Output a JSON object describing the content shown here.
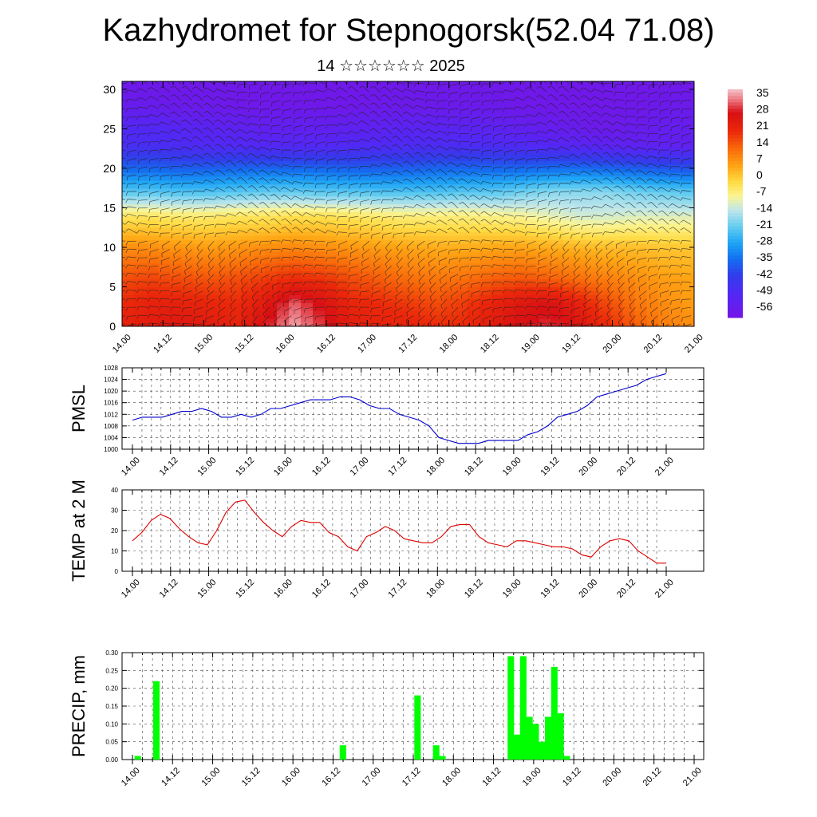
{
  "title": "Kazhydromet for Stepnogorsk(52.04 71.08)",
  "subtitle": "14 ☆☆☆☆☆☆ 2025",
  "time_labels": [
    "14.00",
    "14.12",
    "15.00",
    "15.12",
    "16.00",
    "16.12",
    "17.00",
    "17.12",
    "18.00",
    "18.12",
    "19.00",
    "19.12",
    "20.00",
    "20.12",
    "21.00"
  ],
  "chart_data": [
    {
      "type": "heatmap",
      "name": "temperature cross-section with wind barbs",
      "y_ticks": [
        0,
        5,
        10,
        15,
        20,
        25,
        30
      ],
      "ylim": [
        0,
        31
      ],
      "colorbar": {
        "labels": [
          "35",
          "28",
          "21",
          "14",
          "7",
          "0",
          "-7",
          "-14",
          "-21",
          "-28",
          "-35",
          "-42",
          "-49",
          "-56"
        ],
        "range": [
          -60,
          38
        ]
      },
      "layers": [
        {
          "height": 0,
          "values": [
            22,
            24,
            26,
            24,
            22,
            28,
            36,
            30,
            24,
            22,
            22,
            20,
            20,
            24,
            28,
            30,
            26,
            20,
            14,
            10,
            8
          ]
        },
        {
          "height": 3,
          "values": [
            20,
            22,
            22,
            21,
            20,
            24,
            32,
            27,
            21,
            20,
            18,
            16,
            18,
            22,
            25,
            27,
            22,
            16,
            11,
            8,
            6
          ]
        },
        {
          "height": 6,
          "values": [
            16,
            17,
            16,
            15,
            16,
            18,
            20,
            19,
            16,
            14,
            12,
            11,
            12,
            14,
            15,
            14,
            12,
            10,
            8,
            6,
            5
          ]
        },
        {
          "height": 10,
          "values": [
            8,
            8,
            7,
            6,
            7,
            8,
            9,
            8,
            7,
            6,
            5,
            4,
            4,
            5,
            5,
            4,
            3,
            2,
            2,
            1,
            1
          ]
        },
        {
          "height": 14,
          "values": [
            -4,
            -4,
            -5,
            -5,
            -4,
            -4,
            -3,
            -3,
            -4,
            -5,
            -6,
            -6,
            -6,
            -7,
            -8,
            -10,
            -12,
            -12,
            -11,
            -11,
            -11
          ]
        },
        {
          "height": 17,
          "values": [
            -22,
            -22,
            -23,
            -23,
            -22,
            -21,
            -21,
            -22,
            -22,
            -23,
            -23,
            -23,
            -22,
            -22,
            -20,
            -18,
            -18,
            -18,
            -20,
            -21,
            -22
          ]
        },
        {
          "height": 20,
          "values": [
            -36,
            -36,
            -37,
            -37,
            -36,
            -36,
            -36,
            -36,
            -37,
            -37,
            -37,
            -36,
            -36,
            -36,
            -36,
            -35,
            -35,
            -36,
            -37,
            -38,
            -39
          ]
        },
        {
          "height": 23,
          "values": [
            -48,
            -48,
            -49,
            -50,
            -50,
            -51,
            -51,
            -51,
            -50,
            -50,
            -49,
            -49,
            -49,
            -49,
            -50,
            -51,
            -52,
            -53,
            -54,
            -54,
            -54
          ]
        },
        {
          "height": 25,
          "values": [
            -50,
            -50,
            -51,
            -52,
            -53,
            -54,
            -54,
            -54,
            -53,
            -53,
            -52,
            -52,
            -52,
            -53,
            -54,
            -55,
            -56,
            -57,
            -56,
            -55,
            -55
          ]
        },
        {
          "height": 28,
          "values": [
            -56,
            -56,
            -57,
            -57,
            -58,
            -58,
            -58,
            -58,
            -58,
            -57,
            -57,
            -57,
            -57,
            -57,
            -58,
            -58,
            -58,
            -58,
            -58,
            -57,
            -57
          ]
        },
        {
          "height": 31,
          "values": [
            -58,
            -58,
            -58,
            -58,
            -58,
            -58,
            -58,
            -58,
            -58,
            -58,
            -58,
            -58,
            -58,
            -58,
            -58,
            -58,
            -58,
            -58,
            -58,
            -58,
            -58
          ]
        }
      ]
    },
    {
      "type": "line",
      "ylabel": "PMSL",
      "ylim": [
        1000,
        1028
      ],
      "y_ticks": [
        1000,
        1004,
        1008,
        1012,
        1016,
        1020,
        1024,
        1028
      ],
      "values": [
        1010,
        1011,
        1011,
        1011,
        1012,
        1013,
        1013,
        1014,
        1013,
        1011,
        1011,
        1012,
        1011,
        1012,
        1014,
        1014,
        1015,
        1016,
        1017,
        1017,
        1017,
        1018,
        1018,
        1017,
        1015,
        1014,
        1014,
        1012,
        1011,
        1010,
        1008,
        1004,
        1003,
        1002,
        1002,
        1002,
        1003,
        1003,
        1003,
        1003,
        1005,
        1006,
        1008,
        1011,
        1012,
        1013,
        1015,
        1018,
        1019,
        1020,
        1021,
        1022,
        1024,
        1025,
        1026
      ]
    },
    {
      "type": "line",
      "ylabel": "TEMP at 2 M",
      "ylim": [
        0,
        40
      ],
      "y_ticks": [
        0,
        10,
        20,
        30,
        40
      ],
      "values": [
        15,
        19,
        25,
        28,
        26,
        21,
        17,
        14,
        13,
        20,
        29,
        34,
        35,
        29,
        24,
        20,
        17,
        22,
        25,
        24,
        24,
        19,
        17,
        12,
        10,
        17,
        19,
        22,
        20,
        16,
        15,
        14,
        14,
        17,
        22,
        23,
        23,
        17,
        14,
        13,
        12,
        15,
        15,
        14,
        13,
        12,
        12,
        11,
        8,
        7,
        12,
        15,
        16,
        15,
        10,
        7,
        4,
        4
      ]
    },
    {
      "type": "bar",
      "ylabel": "PRECIP, mm",
      "ylim": [
        0,
        0.3
      ],
      "y_ticks": [
        "0.00",
        "0.05",
        "0.10",
        "0.15",
        "0.20",
        "0.25",
        "0.30"
      ],
      "color": "#00ff00",
      "values": [
        0,
        0,
        0.01,
        0,
        0,
        0.22,
        0,
        0,
        0,
        0,
        0,
        0,
        0,
        0,
        0,
        0,
        0,
        0,
        0,
        0,
        0,
        0,
        0,
        0,
        0,
        0,
        0,
        0,
        0,
        0,
        0,
        0,
        0,
        0,
        0,
        0.04,
        0,
        0,
        0,
        0,
        0,
        0,
        0,
        0,
        0,
        0,
        0,
        0.18,
        0,
        0,
        0.04,
        0.01,
        0,
        0,
        0,
        0,
        0,
        0,
        0,
        0,
        0,
        0,
        0.29,
        0.07,
        0.29,
        0.12,
        0.1,
        0.05,
        0.12,
        0.26,
        0.13,
        0.01,
        0,
        0,
        0,
        0,
        0,
        0,
        0,
        0,
        0,
        0,
        0,
        0,
        0,
        0,
        0,
        0,
        0,
        0,
        0,
        0
      ]
    }
  ]
}
